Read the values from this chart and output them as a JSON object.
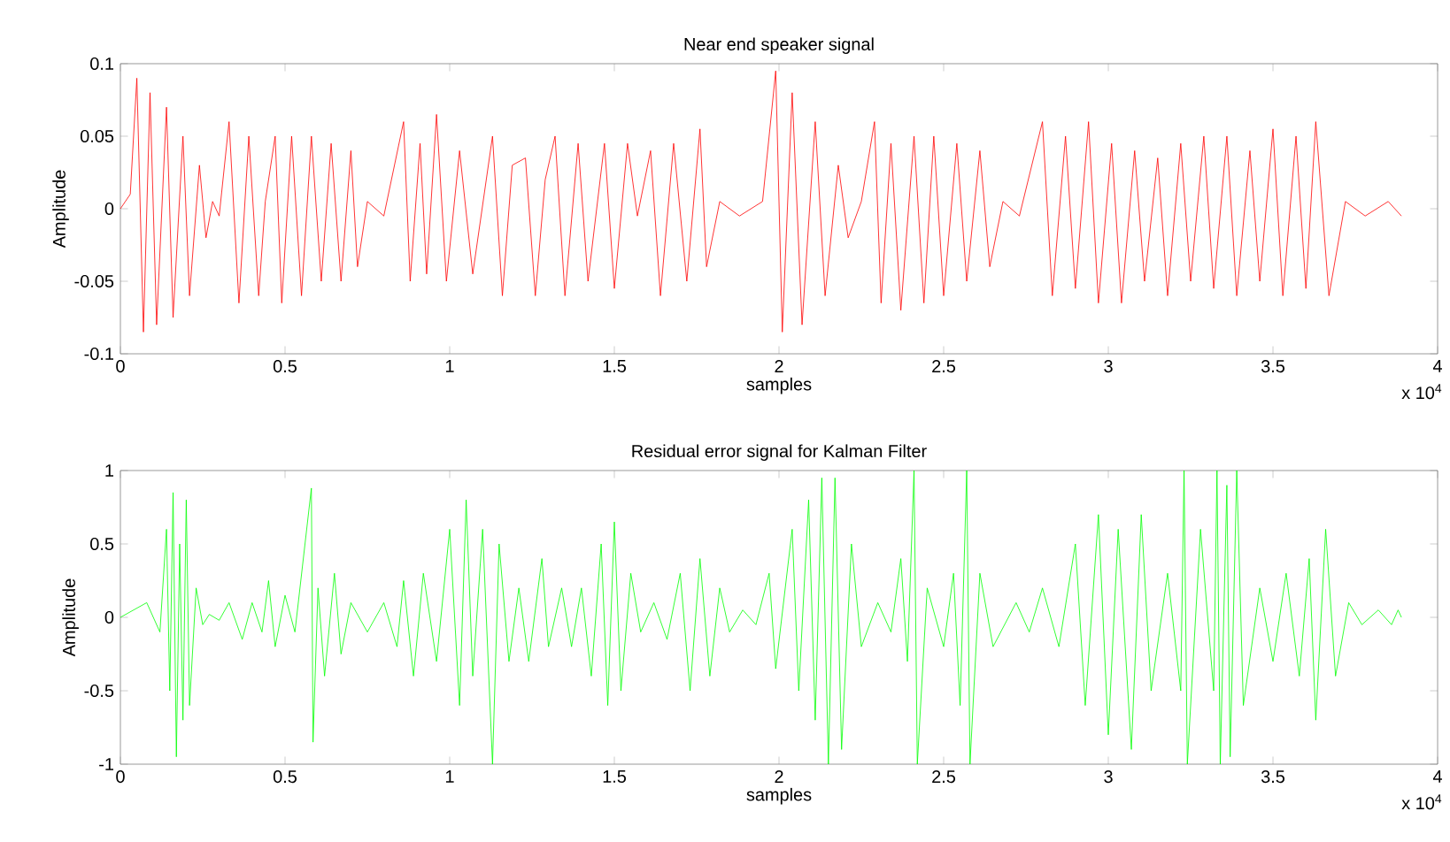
{
  "chart_data": [
    {
      "type": "line",
      "title": "Near end speaker signal",
      "xlabel": "samples",
      "ylabel": "Amplitude",
      "annotations": [
        "x 10$^{4}$"
      ],
      "xlim": [
        0,
        4
      ],
      "xticks": [
        0,
        0.5,
        1,
        1.5,
        2,
        2.5,
        3,
        3.5,
        4
      ],
      "ylim": [
        -0.1,
        0.1
      ],
      "yticks": [
        -0.1,
        -0.05,
        0,
        0.05,
        0.1
      ],
      "series": [
        {
          "color": "#ff0000",
          "x": [
            0,
            0.03,
            0.05,
            0.07,
            0.09,
            0.11,
            0.14,
            0.16,
            0.19,
            0.21,
            0.24,
            0.26,
            0.28,
            0.3,
            0.33,
            0.36,
            0.39,
            0.42,
            0.44,
            0.47,
            0.49,
            0.52,
            0.55,
            0.58,
            0.61,
            0.64,
            0.67,
            0.7,
            0.72,
            0.75,
            0.8,
            0.86,
            0.88,
            0.91,
            0.93,
            0.96,
            0.99,
            1.03,
            1.07,
            1.13,
            1.16,
            1.19,
            1.23,
            1.26,
            1.29,
            1.32,
            1.35,
            1.39,
            1.42,
            1.47,
            1.5,
            1.54,
            1.57,
            1.61,
            1.64,
            1.68,
            1.72,
            1.76,
            1.78,
            1.82,
            1.88,
            1.95,
            1.99,
            2.01,
            2.04,
            2.07,
            2.11,
            2.14,
            2.18,
            2.21,
            2.25,
            2.29,
            2.31,
            2.34,
            2.37,
            2.41,
            2.44,
            2.47,
            2.5,
            2.54,
            2.57,
            2.61,
            2.64,
            2.68,
            2.73,
            2.8,
            2.83,
            2.87,
            2.9,
            2.94,
            2.97,
            3.01,
            3.04,
            3.08,
            3.11,
            3.15,
            3.18,
            3.22,
            3.25,
            3.29,
            3.32,
            3.36,
            3.39,
            3.43,
            3.46,
            3.5,
            3.53,
            3.57,
            3.6,
            3.63,
            3.67,
            3.72,
            3.78,
            3.85,
            3.89
          ],
          "values": [
            0,
            0.01,
            0.09,
            -0.085,
            0.08,
            -0.08,
            0.07,
            -0.075,
            0.05,
            -0.06,
            0.03,
            -0.02,
            0.005,
            -0.005,
            0.06,
            -0.065,
            0.05,
            -0.06,
            0.005,
            0.05,
            -0.065,
            0.05,
            -0.06,
            0.05,
            -0.05,
            0.045,
            -0.05,
            0.04,
            -0.04,
            0.005,
            -0.005,
            0.06,
            -0.05,
            0.045,
            -0.045,
            0.065,
            -0.05,
            0.04,
            -0.045,
            0.05,
            -0.06,
            0.03,
            0.035,
            -0.06,
            0.02,
            0.05,
            -0.06,
            0.045,
            -0.05,
            0.045,
            -0.055,
            0.045,
            -0.005,
            0.04,
            -0.06,
            0.045,
            -0.05,
            0.055,
            -0.04,
            0.005,
            -0.005,
            0.005,
            0.095,
            -0.085,
            0.08,
            -0.08,
            0.06,
            -0.06,
            0.03,
            -0.02,
            0.005,
            0.06,
            -0.065,
            0.045,
            -0.07,
            0.05,
            -0.065,
            0.05,
            -0.06,
            0.045,
            -0.05,
            0.04,
            -0.04,
            0.005,
            -0.005,
            0.06,
            -0.06,
            0.05,
            -0.055,
            0.06,
            -0.065,
            0.045,
            -0.065,
            0.04,
            -0.05,
            0.035,
            -0.06,
            0.045,
            -0.05,
            0.05,
            -0.055,
            0.05,
            -0.06,
            0.04,
            -0.05,
            0.055,
            -0.06,
            0.05,
            -0.055,
            0.06,
            -0.06,
            0.005,
            -0.005,
            0.005,
            -0.005
          ]
        }
      ]
    },
    {
      "type": "line",
      "title": "Residual error signal for Kalman Filter",
      "xlabel": "samples",
      "ylabel": "Amplitude",
      "annotations": [
        "x 10$^{4}$"
      ],
      "xlim": [
        0,
        4
      ],
      "xticks": [
        0,
        0.5,
        1,
        1.5,
        2,
        2.5,
        3,
        3.5,
        4
      ],
      "ylim": [
        -1,
        1
      ],
      "yticks": [
        -1,
        -0.5,
        0,
        0.5,
        1
      ],
      "series": [
        {
          "color": "#00ff00",
          "x": [
            0,
            0.08,
            0.12,
            0.14,
            0.15,
            0.16,
            0.17,
            0.18,
            0.19,
            0.2,
            0.21,
            0.23,
            0.25,
            0.27,
            0.3,
            0.33,
            0.37,
            0.4,
            0.43,
            0.45,
            0.47,
            0.5,
            0.53,
            0.58,
            0.585,
            0.6,
            0.62,
            0.65,
            0.67,
            0.7,
            0.75,
            0.8,
            0.84,
            0.86,
            0.89,
            0.92,
            0.96,
            1,
            1.03,
            1.05,
            1.07,
            1.1,
            1.13,
            1.15,
            1.18,
            1.21,
            1.24,
            1.28,
            1.3,
            1.34,
            1.37,
            1.4,
            1.43,
            1.46,
            1.48,
            1.5,
            1.52,
            1.55,
            1.58,
            1.62,
            1.66,
            1.7,
            1.73,
            1.76,
            1.79,
            1.82,
            1.85,
            1.89,
            1.93,
            1.97,
            1.99,
            2.04,
            2.06,
            2.09,
            2.11,
            2.13,
            2.15,
            2.17,
            2.19,
            2.22,
            2.25,
            2.3,
            2.34,
            2.37,
            2.39,
            2.41,
            2.42,
            2.45,
            2.5,
            2.53,
            2.55,
            2.57,
            2.58,
            2.61,
            2.65,
            2.72,
            2.76,
            2.8,
            2.85,
            2.9,
            2.93,
            2.97,
            3,
            3.03,
            3.07,
            3.1,
            3.13,
            3.18,
            3.22,
            3.23,
            3.24,
            3.28,
            3.32,
            3.33,
            3.34,
            3.36,
            3.37,
            3.39,
            3.41,
            3.46,
            3.5,
            3.54,
            3.58,
            3.61,
            3.63,
            3.66,
            3.69,
            3.73,
            3.77,
            3.82,
            3.86,
            3.88,
            3.89
          ],
          "values": [
            0,
            0.1,
            -0.1,
            0.6,
            -0.5,
            0.85,
            -0.95,
            0.5,
            -0.7,
            0.8,
            -0.6,
            0.2,
            -0.05,
            0.02,
            -0.02,
            0.1,
            -0.15,
            0.1,
            -0.1,
            0.25,
            -0.2,
            0.15,
            -0.1,
            0.88,
            -0.85,
            0.2,
            -0.4,
            0.3,
            -0.25,
            0.1,
            -0.1,
            0.1,
            -0.2,
            0.25,
            -0.4,
            0.3,
            -0.3,
            0.6,
            -0.6,
            0.8,
            -0.4,
            0.6,
            -1,
            0.5,
            -0.3,
            0.2,
            -0.3,
            0.4,
            -0.2,
            0.2,
            -0.2,
            0.2,
            -0.4,
            0.5,
            -0.6,
            0.65,
            -0.5,
            0.3,
            -0.1,
            0.1,
            -0.15,
            0.3,
            -0.5,
            0.4,
            -0.4,
            0.2,
            -0.1,
            0.05,
            -0.05,
            0.3,
            -0.35,
            0.6,
            -0.5,
            0.8,
            -0.7,
            0.95,
            -1,
            0.95,
            -0.9,
            0.5,
            -0.2,
            0.1,
            -0.1,
            0.4,
            -0.3,
            1,
            -1,
            0.2,
            -0.2,
            0.3,
            -0.6,
            1,
            -1,
            0.3,
            -0.2,
            0.1,
            -0.1,
            0.2,
            -0.2,
            0.5,
            -0.6,
            0.7,
            -0.8,
            0.6,
            -0.9,
            0.7,
            -0.5,
            0.3,
            -0.5,
            1,
            -1,
            0.6,
            -0.5,
            1,
            -1,
            0.9,
            -0.95,
            1,
            -0.6,
            0.2,
            -0.3,
            0.3,
            -0.4,
            0.4,
            -0.7,
            0.6,
            -0.4,
            0.1,
            -0.05,
            0.05,
            -0.05,
            0.05,
            0
          ]
        }
      ]
    }
  ]
}
